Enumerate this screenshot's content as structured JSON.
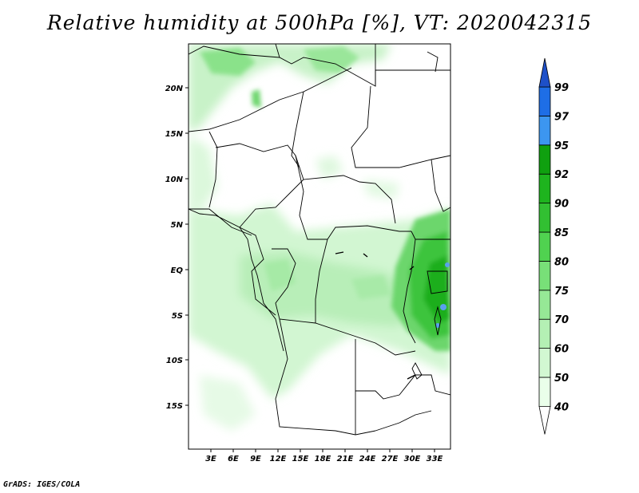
{
  "title": "Relative humidity at 500hPa [%], VT: 2020042315",
  "credit": "GrADS: IGES/COLA",
  "map": {
    "lon_labels": [
      "3E",
      "6E",
      "9E",
      "12E",
      "15E",
      "18E",
      "21E",
      "24E",
      "27E",
      "30E",
      "33E"
    ],
    "lat_labels": [
      "20N",
      "15N",
      "10N",
      "5N",
      "EQ",
      "5S",
      "10S",
      "15S"
    ]
  },
  "colorbar": {
    "levels": [
      "40",
      "50",
      "60",
      "70",
      "75",
      "80",
      "85",
      "90",
      "92",
      "95",
      "97",
      "99"
    ],
    "colors": [
      "#ffffff",
      "#eaffea",
      "#d2f8d2",
      "#b4f0b4",
      "#96e896",
      "#78e078",
      "#50d250",
      "#32c032",
      "#1eb41e",
      "#0fa00f",
      "#3c96f0",
      "#1e6ee6",
      "#1e50c8"
    ]
  }
}
